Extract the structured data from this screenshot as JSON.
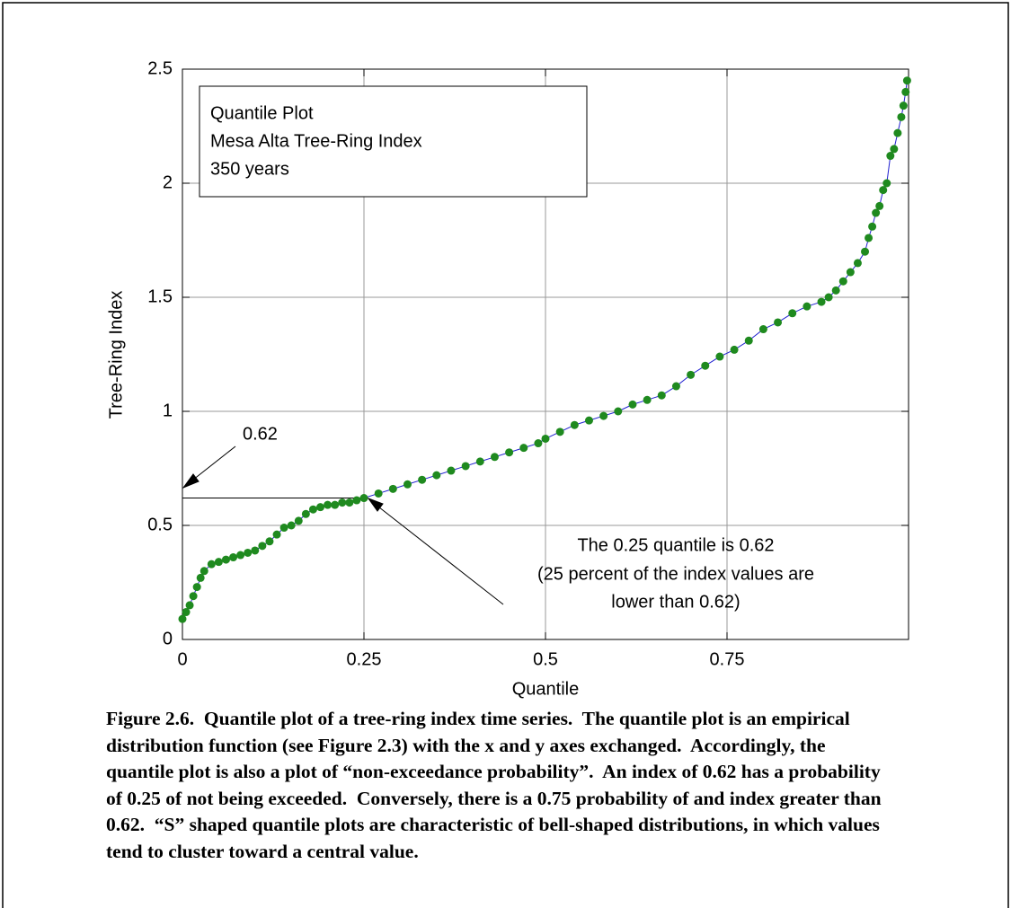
{
  "chart_data": {
    "type": "line",
    "x_label": "Quantile",
    "y_label": "Tree-Ring Index",
    "text_box": [
      "Quantile Plot",
      "Mesa Alta Tree-Ring Index",
      "350 years"
    ],
    "annotations": [
      "0.62",
      "The 0.25 quantile is 0.62",
      "(25 percent of the index values are",
      "lower than 0.62)"
    ],
    "reference_point": {
      "x": 0.25,
      "y": 0.62
    },
    "x": [
      0,
      0.005,
      0.01,
      0.015,
      0.02,
      0.025,
      0.03,
      0.04,
      0.05,
      0.06,
      0.07,
      0.08,
      0.09,
      0.1,
      0.11,
      0.12,
      0.13,
      0.14,
      0.15,
      0.16,
      0.17,
      0.18,
      0.19,
      0.2,
      0.21,
      0.22,
      0.23,
      0.24,
      0.25,
      0.27,
      0.29,
      0.31,
      0.33,
      0.35,
      0.37,
      0.39,
      0.41,
      0.43,
      0.45,
      0.47,
      0.49,
      0.5,
      0.52,
      0.54,
      0.56,
      0.58,
      0.6,
      0.62,
      0.64,
      0.66,
      0.68,
      0.7,
      0.72,
      0.74,
      0.76,
      0.78,
      0.8,
      0.82,
      0.84,
      0.86,
      0.88,
      0.89,
      0.9,
      0.91,
      0.92,
      0.93,
      0.94,
      0.945,
      0.95,
      0.955,
      0.96,
      0.965,
      0.97,
      0.975,
      0.98,
      0.985,
      0.99,
      0.993,
      0.996,
      0.998
    ],
    "values": [
      0.09,
      0.12,
      0.15,
      0.19,
      0.23,
      0.27,
      0.3,
      0.33,
      0.34,
      0.35,
      0.36,
      0.37,
      0.38,
      0.39,
      0.41,
      0.43,
      0.46,
      0.49,
      0.5,
      0.52,
      0.55,
      0.57,
      0.58,
      0.59,
      0.59,
      0.6,
      0.6,
      0.61,
      0.62,
      0.64,
      0.66,
      0.68,
      0.7,
      0.72,
      0.74,
      0.76,
      0.78,
      0.8,
      0.82,
      0.84,
      0.86,
      0.88,
      0.91,
      0.94,
      0.96,
      0.98,
      1.0,
      1.03,
      1.05,
      1.07,
      1.11,
      1.16,
      1.2,
      1.24,
      1.27,
      1.31,
      1.36,
      1.39,
      1.43,
      1.46,
      1.48,
      1.5,
      1.53,
      1.57,
      1.61,
      1.65,
      1.7,
      1.76,
      1.81,
      1.87,
      1.9,
      1.97,
      2.0,
      2.12,
      2.15,
      2.22,
      2.29,
      2.34,
      2.4,
      2.45
    ],
    "color": "#1f8a1f",
    "line_color": "#2020d0",
    "xlim": [
      0,
      1
    ],
    "ylim": [
      0,
      2.5
    ],
    "xticks": [
      0,
      0.25,
      0.5,
      0.75
    ],
    "yticks": [
      0,
      0.5,
      1,
      1.5,
      2,
      2.5
    ],
    "grid": true,
    "caption": [
      "Figure 2.6.  Quantile plot of a tree-ring index time series.  The quantile plot is an empirical",
      "distribution function (see Figure 2.3) with the x and y axes exchanged.  Accordingly, the",
      "quantile plot is also a plot of “non-exceedance probability”.  An index of 0.62 has a probability",
      "of 0.25 of not being exceeded.  Conversely, there is a 0.75 probability of and index greater than",
      "0.62.  “S” shaped quantile plots are characteristic of bell-shaped distributions, in which values",
      "tend to cluster toward a central value."
    ]
  }
}
